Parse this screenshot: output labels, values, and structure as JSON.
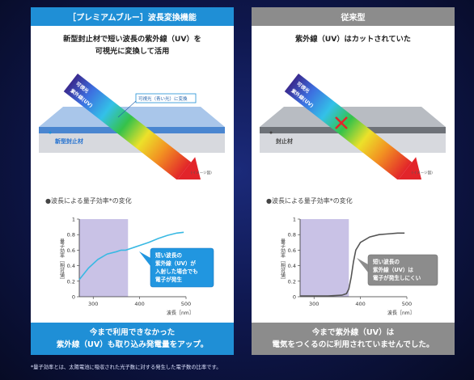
{
  "left_panel": {
    "header": "［プレミアムブルー］波長変換機能",
    "title_line1": "新型封止材で短い波長の紫外線（UV）を",
    "title_line2": "可視光に変換して活用",
    "beam_label_uv": "紫外線(UV)",
    "beam_label_visible": "可視光",
    "callout_visible": "可視光（青い光）に変換",
    "material_label": "新型封止材",
    "image_note": "(イメージ図)",
    "chart_title": "●波長による量子効率*の変化",
    "chart_bubble": [
      "短い波長の",
      "紫外線（UV）が",
      "入射した場合でも",
      "電子が発生"
    ],
    "footer_line1": "今まで利用できなかった",
    "footer_line2": "紫外線（UV）も取り込み発電量をアップ。"
  },
  "right_panel": {
    "header": "従来型",
    "title_line1": "紫外線（UV）はカットされていた",
    "beam_label_uv": "紫外線(UV)",
    "beam_label_visible": "可視光",
    "material_label": "封止材",
    "image_note": "(イメージ図)",
    "chart_title": "●波長による量子効率*の変化",
    "chart_bubble": [
      "短い波長の",
      "紫外線（UV）は",
      "電子が発生しにくい"
    ],
    "footer_line1": "今まで紫外線（UV）は",
    "footer_line2": "電気をつくるのに利用されていませんでした。"
  },
  "footnote": "*量子効率とは、太陽電池に吸収された光子数に対する発生した電子数の比率です。",
  "colors": {
    "accent_blue": "#1f8fd6",
    "conventional_gray": "#8c8c8c",
    "uv_region": "#c9c2e6"
  },
  "chart_data": [
    {
      "type": "line",
      "xlabel": "波長［nm］",
      "ylabel": "量子効率［相対値］",
      "xlim": [
        270,
        500
      ],
      "ylim": [
        0,
        1
      ],
      "x_ticks": [
        "300",
        "400",
        "500"
      ],
      "y_ticks": [
        "0",
        "0.2",
        "0.4",
        "0.6",
        "0.8",
        "1"
      ],
      "uv_region": [
        270,
        375
      ],
      "series": [
        {
          "x": [
            270,
            290,
            310,
            330,
            350,
            360,
            370,
            380,
            390,
            400,
            420,
            440,
            460,
            480,
            495
          ],
          "y": [
            0.22,
            0.37,
            0.48,
            0.55,
            0.58,
            0.6,
            0.6,
            0.62,
            0.64,
            0.66,
            0.7,
            0.75,
            0.79,
            0.82,
            0.83
          ]
        }
      ]
    },
    {
      "type": "line",
      "xlabel": "波長［nm］",
      "ylabel": "量子効率［相対値］",
      "xlim": [
        270,
        500
      ],
      "ylim": [
        0,
        1
      ],
      "x_ticks": [
        "300",
        "400",
        "500"
      ],
      "y_ticks": [
        "0",
        "0.2",
        "0.4",
        "0.6",
        "0.8",
        "1"
      ],
      "uv_region": [
        270,
        375
      ],
      "series": [
        {
          "x": [
            270,
            300,
            330,
            360,
            370,
            375,
            380,
            385,
            390,
            400,
            420,
            440,
            460,
            480,
            495
          ],
          "y": [
            0.01,
            0.01,
            0.01,
            0.02,
            0.04,
            0.1,
            0.25,
            0.45,
            0.6,
            0.7,
            0.77,
            0.8,
            0.81,
            0.82,
            0.82
          ]
        }
      ]
    }
  ]
}
